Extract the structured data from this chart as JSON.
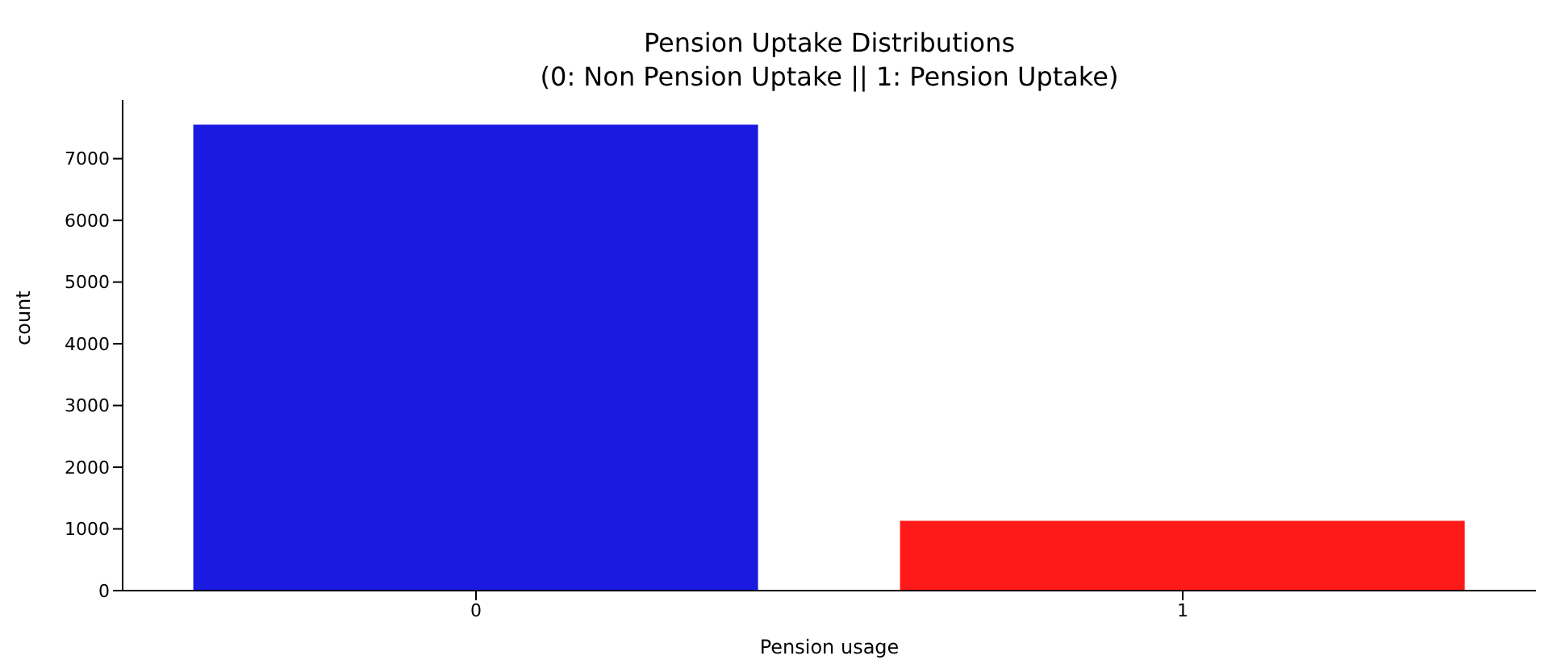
{
  "chart_data": {
    "type": "bar",
    "title": "Pension Uptake Distributions",
    "subtitle": "(0: Non Pension Uptake || 1: Pension Uptake)",
    "xlabel": "Pension usage",
    "ylabel": "count",
    "categories": [
      "0",
      "1"
    ],
    "values": [
      7550,
      1130
    ],
    "colors": [
      "#1a1ae0",
      "#ff1a1a"
    ],
    "ylim": [
      0,
      7950
    ],
    "yticks": [
      0,
      1000,
      2000,
      3000,
      4000,
      5000,
      6000,
      7000
    ],
    "grid": false,
    "legend": false
  }
}
